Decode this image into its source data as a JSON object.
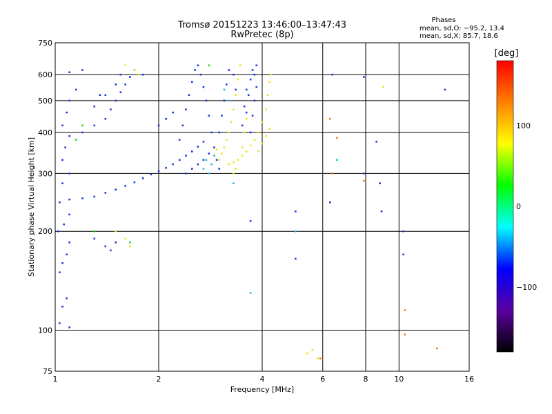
{
  "chart_data": {
    "type": "scatter",
    "title": "Tromsø 20151223 13:46:00–13:47:43",
    "subtitle": "RwPretec (8p)",
    "xlabel": "Frequency [MHz]",
    "ylabel": "Stationary phase Virtual Height [km]",
    "xscale": "log",
    "yscale": "log",
    "xlim": [
      1,
      16
    ],
    "ylim": [
      75,
      750
    ],
    "x_ticks": [
      1,
      2,
      4,
      6,
      8,
      10,
      16
    ],
    "x_tick_labels": [
      "1",
      "2",
      "4",
      "6",
      "8",
      "10",
      "16"
    ],
    "y_ticks": [
      75,
      100,
      200,
      300,
      400,
      500,
      600,
      750
    ],
    "y_tick_labels": [
      "75",
      "100",
      "200",
      "300",
      "400",
      "500",
      "600",
      "750"
    ],
    "grid": true,
    "stats": {
      "header": "Phases",
      "line_o": "mean, sd,O: −95.2, 13.4",
      "line_x": "mean, sd,X:  85.7, 18.6"
    },
    "colorbar": {
      "label": "[deg]",
      "range": [
        -180,
        180
      ],
      "ticks": [
        100,
        0,
        -100
      ],
      "tick_labels": [
        "100",
        "0",
        "−100"
      ],
      "colormap": "rainbow",
      "stops": [
        "#000000",
        "#5a00a0",
        "#0000ff",
        "#00ffff",
        "#00ff00",
        "#ffff00",
        "#ff8000",
        "#ff0000"
      ]
    },
    "series": [
      {
        "color": "#1a3ae6",
        "phase": -100,
        "points": [
          [
            1.03,
            105
          ],
          [
            1.05,
            118
          ],
          [
            1.08,
            125
          ],
          [
            1.1,
            102
          ],
          [
            1.03,
            150
          ],
          [
            1.05,
            160
          ],
          [
            1.08,
            170
          ],
          [
            1.1,
            185
          ],
          [
            1.02,
            200
          ],
          [
            1.06,
            210
          ],
          [
            1.1,
            225
          ],
          [
            1.03,
            245
          ],
          [
            1.1,
            250
          ],
          [
            1.2,
            252
          ],
          [
            1.3,
            255
          ],
          [
            1.4,
            262
          ],
          [
            1.5,
            268
          ],
          [
            1.6,
            275
          ],
          [
            1.7,
            282
          ],
          [
            1.8,
            290
          ],
          [
            1.9,
            298
          ],
          [
            2.0,
            305
          ],
          [
            2.1,
            312
          ],
          [
            2.2,
            320
          ],
          [
            2.3,
            330
          ],
          [
            2.4,
            340
          ],
          [
            2.5,
            350
          ],
          [
            2.6,
            362
          ],
          [
            2.7,
            375
          ],
          [
            1.05,
            280
          ],
          [
            1.1,
            300
          ],
          [
            1.05,
            330
          ],
          [
            1.07,
            360
          ],
          [
            1.1,
            390
          ],
          [
            1.05,
            420
          ],
          [
            1.08,
            460
          ],
          [
            1.1,
            500
          ],
          [
            1.15,
            540
          ],
          [
            1.1,
            610
          ],
          [
            1.2,
            400
          ],
          [
            1.3,
            420
          ],
          [
            1.4,
            440
          ],
          [
            1.45,
            470
          ],
          [
            1.5,
            500
          ],
          [
            1.55,
            530
          ],
          [
            1.6,
            560
          ],
          [
            1.65,
            590
          ],
          [
            1.7,
            620
          ],
          [
            1.8,
            600
          ],
          [
            1.3,
            480
          ],
          [
            1.4,
            520
          ],
          [
            1.5,
            560
          ],
          [
            1.55,
            600
          ],
          [
            1.3,
            190
          ],
          [
            1.4,
            180
          ],
          [
            1.45,
            175
          ],
          [
            1.5,
            185
          ],
          [
            2.3,
            380
          ],
          [
            2.35,
            420
          ],
          [
            2.4,
            470
          ],
          [
            2.45,
            520
          ],
          [
            2.5,
            570
          ],
          [
            2.55,
            620
          ],
          [
            2.6,
            640
          ],
          [
            2.65,
            600
          ],
          [
            2.7,
            550
          ],
          [
            2.75,
            500
          ],
          [
            2.8,
            450
          ],
          [
            2.85,
            400
          ],
          [
            2.9,
            360
          ],
          [
            2.95,
            330
          ],
          [
            3.0,
            310
          ],
          [
            2.4,
            300
          ],
          [
            2.5,
            310
          ],
          [
            2.6,
            320
          ],
          [
            2.7,
            330
          ],
          [
            2.8,
            345
          ],
          [
            3.0,
            400
          ],
          [
            3.05,
            450
          ],
          [
            3.1,
            500
          ],
          [
            3.15,
            560
          ],
          [
            3.2,
            620
          ],
          [
            3.6,
            460
          ],
          [
            3.65,
            520
          ],
          [
            3.7,
            580
          ],
          [
            3.75,
            620
          ],
          [
            3.5,
            420
          ],
          [
            3.55,
            480
          ],
          [
            3.6,
            540
          ],
          [
            3.8,
            600
          ],
          [
            3.85,
            640
          ],
          [
            3.7,
            400
          ],
          [
            3.75,
            450
          ],
          [
            3.8,
            500
          ],
          [
            3.85,
            550
          ],
          [
            3.3,
            600
          ],
          [
            3.35,
            540
          ],
          [
            1.2,
            620
          ],
          [
            1.35,
            520
          ],
          [
            2.0,
            420
          ],
          [
            2.1,
            440
          ],
          [
            2.2,
            460
          ],
          [
            5.0,
            230
          ],
          [
            5.0,
            165
          ],
          [
            6.3,
            245
          ],
          [
            6.4,
            600
          ],
          [
            7.9,
            590
          ],
          [
            7.9,
            300
          ],
          [
            8.8,
            280
          ],
          [
            8.9,
            230
          ],
          [
            10.3,
            170
          ],
          [
            13.6,
            540
          ],
          [
            10.3,
            200
          ],
          [
            8.6,
            375
          ],
          [
            3.7,
            215
          ]
        ]
      },
      {
        "color": "#e6e61a",
        "phase": 100,
        "points": [
          [
            3.0,
            330
          ],
          [
            3.05,
            345
          ],
          [
            3.1,
            360
          ],
          [
            3.15,
            380
          ],
          [
            3.2,
            400
          ],
          [
            3.25,
            430
          ],
          [
            3.3,
            470
          ],
          [
            3.35,
            520
          ],
          [
            3.4,
            580
          ],
          [
            3.45,
            640
          ],
          [
            3.2,
            320
          ],
          [
            3.3,
            325
          ],
          [
            3.4,
            330
          ],
          [
            3.5,
            340
          ],
          [
            3.6,
            350
          ],
          [
            3.7,
            365
          ],
          [
            3.8,
            380
          ],
          [
            3.9,
            400
          ],
          [
            4.0,
            430
          ],
          [
            4.1,
            470
          ],
          [
            4.15,
            520
          ],
          [
            4.2,
            570
          ],
          [
            4.25,
            600
          ],
          [
            3.9,
            350
          ],
          [
            4.0,
            370
          ],
          [
            4.1,
            390
          ],
          [
            4.2,
            410
          ],
          [
            3.5,
            360
          ],
          [
            3.55,
            400
          ],
          [
            3.6,
            440
          ],
          [
            1.6,
            640
          ],
          [
            1.7,
            620
          ],
          [
            1.75,
            600
          ],
          [
            1.6,
            190
          ],
          [
            1.65,
            180
          ],
          [
            1.5,
            200
          ],
          [
            5.4,
            85
          ],
          [
            5.6,
            87
          ],
          [
            5.8,
            82
          ],
          [
            9.0,
            550
          ],
          [
            3.3,
            300
          ],
          [
            3.35,
            310
          ],
          [
            2.9,
            340
          ],
          [
            2.95,
            355
          ]
        ]
      },
      {
        "color": "#1ac0e6",
        "phase": -30,
        "points": [
          [
            2.8,
            300
          ],
          [
            2.85,
            320
          ],
          [
            2.9,
            340
          ],
          [
            2.7,
            310
          ],
          [
            2.75,
            330
          ],
          [
            3.1,
            540
          ],
          [
            3.2,
            500
          ],
          [
            6.6,
            330
          ],
          [
            5.0,
            200
          ],
          [
            3.7,
            130
          ],
          [
            3.3,
            280
          ]
        ]
      },
      {
        "color": "#e6801a",
        "phase": 140,
        "points": [
          [
            6.3,
            440
          ],
          [
            6.4,
            300
          ],
          [
            5.9,
            82
          ],
          [
            10.4,
            115
          ],
          [
            10.4,
            97
          ],
          [
            12.9,
            88
          ],
          [
            6.6,
            385
          ],
          [
            7.9,
            285
          ]
        ]
      },
      {
        "color": "#2ad02a",
        "phase": 30,
        "points": [
          [
            1.3,
            200
          ],
          [
            1.2,
            420
          ],
          [
            1.65,
            185
          ],
          [
            2.8,
            640
          ],
          [
            1.15,
            380
          ]
        ]
      }
    ]
  }
}
